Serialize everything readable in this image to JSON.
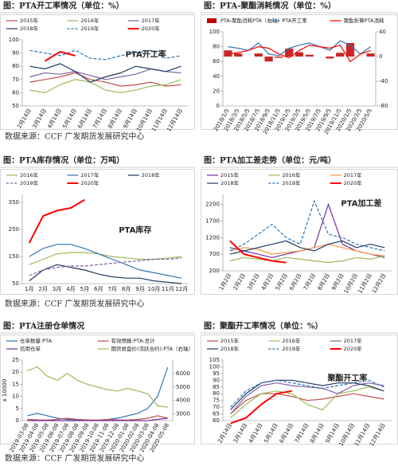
{
  "chart_data": [
    {
      "type": "line",
      "title": "图：PTA开工率情况（单位：%）",
      "annotation": "PTA开工率",
      "categories": [
        "2月14日",
        "3月14日",
        "4月14日",
        "5月14日",
        "6月14日",
        "7月14日",
        "8月14日",
        "9月14日",
        "10月14日",
        "11月14日",
        "12月14日"
      ],
      "ylim": [
        50,
        100
      ],
      "yticks": [
        50,
        60,
        70,
        80,
        90,
        100
      ],
      "series": [
        {
          "name": "2015年",
          "color": "#c0504d",
          "values": [
            68,
            70,
            72,
            75,
            70,
            68,
            65,
            66,
            68,
            65,
            66
          ]
        },
        {
          "name": "2016年",
          "color": "#9bbb59",
          "values": [
            62,
            60,
            66,
            70,
            68,
            62,
            60,
            62,
            65,
            66,
            70
          ]
        },
        {
          "name": "2017年",
          "color": "#8064a2",
          "values": [
            72,
            75,
            74,
            76,
            73,
            70,
            72,
            74,
            78,
            76,
            75
          ]
        },
        {
          "name": "2018年",
          "color": "#1f3864",
          "values": [
            80,
            78,
            82,
            76,
            68,
            72,
            75,
            80,
            78,
            76,
            80
          ]
        },
        {
          "name": "2019年",
          "color": "#2e75b6",
          "dash": true,
          "values": [
            92,
            90,
            88,
            92,
            86,
            85,
            88,
            90,
            92,
            86,
            88
          ]
        },
        {
          "name": "2020年",
          "color": "#ff0000",
          "width": 2,
          "values": [
            null,
            84,
            91,
            88,
            null,
            null,
            null,
            null,
            null,
            null,
            null
          ]
        }
      ]
    },
    {
      "type": "combo",
      "title": "图：PTA-聚酯消耗情况（单位：%）",
      "categories": [
        "2018/1/5",
        "2018/3/5",
        "2018/5/5",
        "2018/7/5",
        "2018/9/5",
        "2018/11/5",
        "2019/1/5",
        "2019/3/5",
        "2019/5/5",
        "2019/7/5",
        "2019/9/5",
        "2019/11/5",
        "2020/1/5",
        "2020/3/5",
        "2020/5/5"
      ],
      "ylim": [
        0,
        100
      ],
      "yticks": [
        0,
        20,
        40,
        60,
        80,
        100
      ],
      "y2lim": [
        -80,
        40
      ],
      "y2ticks": [
        -80,
        -40,
        0,
        40
      ],
      "series": [
        {
          "name": "PTA-聚酯消耗PTA（右轴）",
          "type": "bar",
          "axis": "y2",
          "color": "#c00000",
          "values": [
            10,
            5,
            0,
            5,
            -8,
            -2,
            13,
            7,
            3,
            0,
            -3,
            6,
            22,
            0,
            5
          ]
        },
        {
          "name": "PTA开工率",
          "color": "#2e75b6",
          "values": [
            80,
            78,
            75,
            85,
            70,
            68,
            78,
            82,
            85,
            80,
            75,
            88,
            82,
            70,
            80
          ]
        },
        {
          "name": "聚酯折算PTA消耗",
          "color": "#ff0000",
          "values": [
            70,
            72,
            75,
            80,
            78,
            70,
            65,
            75,
            82,
            80,
            78,
            82,
            60,
            70,
            75
          ]
        }
      ]
    },
    {
      "type": "line",
      "title": "图：PTA库存情况（单位：万吨）",
      "annotation": "PTA库存",
      "categories": [
        "1月",
        "2月",
        "3月",
        "4月",
        "5月",
        "6月",
        "7月",
        "8月",
        "9月",
        "10月",
        "11月",
        "12月"
      ],
      "ylim": [
        50,
        380
      ],
      "yticks": [
        50,
        150,
        250,
        350
      ],
      "series": [
        {
          "name": "2016年",
          "color": "#9bbb59",
          "values": [
            120,
            140,
            160,
            165,
            165,
            160,
            150,
            145,
            140,
            140,
            145,
            150
          ]
        },
        {
          "name": "2017年",
          "color": "#2e75b6",
          "values": [
            150,
            180,
            195,
            195,
            180,
            160,
            140,
            120,
            100,
            90,
            80,
            70
          ]
        },
        {
          "name": "2018年",
          "color": "#1f3864",
          "values": [
            60,
            100,
            120,
            110,
            100,
            85,
            75,
            70,
            70,
            60,
            55,
            50
          ]
        },
        {
          "name": "2019年",
          "color": "#8064a2",
          "dash": true,
          "values": [
            80,
            100,
            110,
            115,
            115,
            120,
            125,
            130,
            135,
            140,
            140,
            145
          ]
        },
        {
          "name": "2020年",
          "color": "#ff0000",
          "width": 2,
          "values": [
            200,
            300,
            320,
            330,
            360,
            null,
            null,
            null,
            null,
            null,
            null,
            null
          ]
        }
      ]
    },
    {
      "type": "line",
      "title": "图：PTA加工差走势（单位：元/吨）",
      "annotation": "PTA加工差",
      "categories": [
        "1月2日",
        "2月2日",
        "3月2日",
        "4月2日",
        "5月2日",
        "6月2日",
        "7月2日",
        "8月2日",
        "9月2日",
        "10月2日",
        "11月2日",
        "12月2日"
      ],
      "ylim": [
        200,
        2500
      ],
      "yticks": [
        200,
        700,
        1200,
        1700,
        2200
      ],
      "series": [
        {
          "name": "2015年",
          "color": "#7030a0",
          "values": [
            900,
            800,
            700,
            600,
            700,
            800,
            900,
            2200,
            1000,
            800,
            700,
            600
          ]
        },
        {
          "name": "2016年",
          "color": "#9bbb59",
          "values": [
            500,
            600,
            550,
            500,
            600,
            550,
            500,
            450,
            500,
            600,
            550,
            650
          ]
        },
        {
          "name": "2017年",
          "color": "#f79646",
          "values": [
            800,
            900,
            850,
            700,
            750,
            800,
            900,
            1000,
            900,
            800,
            700,
            650
          ]
        },
        {
          "name": "2018年",
          "color": "#1f3864",
          "values": [
            700,
            800,
            900,
            1000,
            1100,
            900,
            800,
            1000,
            1100,
            900,
            1000,
            900
          ]
        },
        {
          "name": "2019年",
          "color": "#2e75b6",
          "dash": true,
          "values": [
            800,
            1000,
            1300,
            1600,
            1200,
            1000,
            2300,
            1300,
            1200,
            1000,
            900,
            800
          ]
        },
        {
          "name": "2020年",
          "color": "#ff0000",
          "width": 2,
          "values": [
            1100,
            700,
            600,
            500,
            450,
            null,
            null,
            null,
            null,
            null,
            null,
            null
          ]
        }
      ]
    },
    {
      "type": "line",
      "title": "图：PTA注册仓单情况",
      "y_label": "x 10000",
      "categories": [
        "2019-03-08",
        "2019-04-08",
        "2019-05-08",
        "2019-06-08",
        "2019-07-08",
        "2019-08-08",
        "2019-09-08",
        "2019-10-08",
        "2019-11-08",
        "2019-12-08",
        "2020-01-08",
        "2020-02-08",
        "2020-03-08",
        "2020-04-08",
        "2020-05-08"
      ],
      "ylim": [
        0,
        25
      ],
      "yticks": [
        0,
        5,
        10,
        15,
        20,
        25
      ],
      "y2lim": [
        2500,
        7000
      ],
      "y2ticks": [
        3000,
        4000,
        5000,
        6000
      ],
      "series": [
        {
          "name": "仓单数量:PTA",
          "color": "#2e75b6",
          "values": [
            2,
            3,
            2,
            1,
            0.5,
            0.3,
            0.2,
            0.1,
            0.5,
            1,
            2,
            3,
            5,
            10,
            22
          ]
        },
        {
          "name": "有效预报:PTA:总计",
          "color": "#c0504d",
          "values": [
            0.5,
            0.3,
            0.2,
            0.5,
            1,
            0.5,
            0.3,
            0.2,
            0.5,
            0.3,
            0.2,
            0.5,
            1,
            2,
            1
          ]
        },
        {
          "name": "信用仓单",
          "color": "#7030a0",
          "values": [
            0,
            0,
            0,
            0,
            0,
            0,
            0,
            0,
            0,
            0,
            0,
            0,
            0,
            0.5,
            1
          ]
        },
        {
          "name": "期货收盘价(活跃合约):PTA（右轴）",
          "color": "#9bbb59",
          "axis": "y2",
          "values": [
            6200,
            6500,
            5800,
            5500,
            6000,
            5500,
            5200,
            5000,
            4800,
            4700,
            4900,
            4700,
            4500,
            3600,
            3500
          ]
        }
      ]
    },
    {
      "type": "line",
      "title": "图：聚酯开工率情况（单位：%）",
      "annotation": "聚酯开工率",
      "categories": [
        "2月14日",
        "3月14日",
        "4月14日",
        "5月14日",
        "6月14日",
        "7月14日",
        "8月14日",
        "9月14日",
        "10月14日",
        "11月14日",
        "12月14日"
      ],
      "ylim": [
        60,
        105
      ],
      "yticks": [
        60,
        65,
        70,
        75,
        80,
        85,
        90,
        95,
        100,
        105
      ],
      "series": [
        {
          "name": "2015年",
          "color": "#c0504d",
          "values": [
            65,
            75,
            80,
            80,
            78,
            75,
            76,
            78,
            80,
            78,
            76
          ]
        },
        {
          "name": "2016年",
          "color": "#9bbb59",
          "values": [
            62,
            72,
            80,
            82,
            80,
            72,
            68,
            80,
            82,
            85,
            82
          ]
        },
        {
          "name": "2017年",
          "color": "#8064a2",
          "values": [
            65,
            78,
            86,
            88,
            86,
            85,
            84,
            80,
            86,
            88,
            86
          ]
        },
        {
          "name": "2018年",
          "color": "#1f3864",
          "values": [
            68,
            80,
            88,
            90,
            90,
            88,
            86,
            88,
            88,
            86,
            82
          ]
        },
        {
          "name": "2019年",
          "color": "#2e75b6",
          "dash": true,
          "values": [
            70,
            82,
            88,
            90,
            88,
            86,
            84,
            86,
            88,
            90,
            85
          ]
        },
        {
          "name": "2020年",
          "color": "#ff0000",
          "width": 2,
          "values": [
            58,
            62,
            72,
            80,
            82,
            null,
            null,
            null,
            null,
            null,
            null
          ]
        }
      ]
    }
  ],
  "notes": [
    "数据来源：CCF 广发期货发展研究中心",
    "数据来源：CCF 广发期货发展研究中心",
    "数据来源：CCF 广发期货发展研究中心"
  ]
}
